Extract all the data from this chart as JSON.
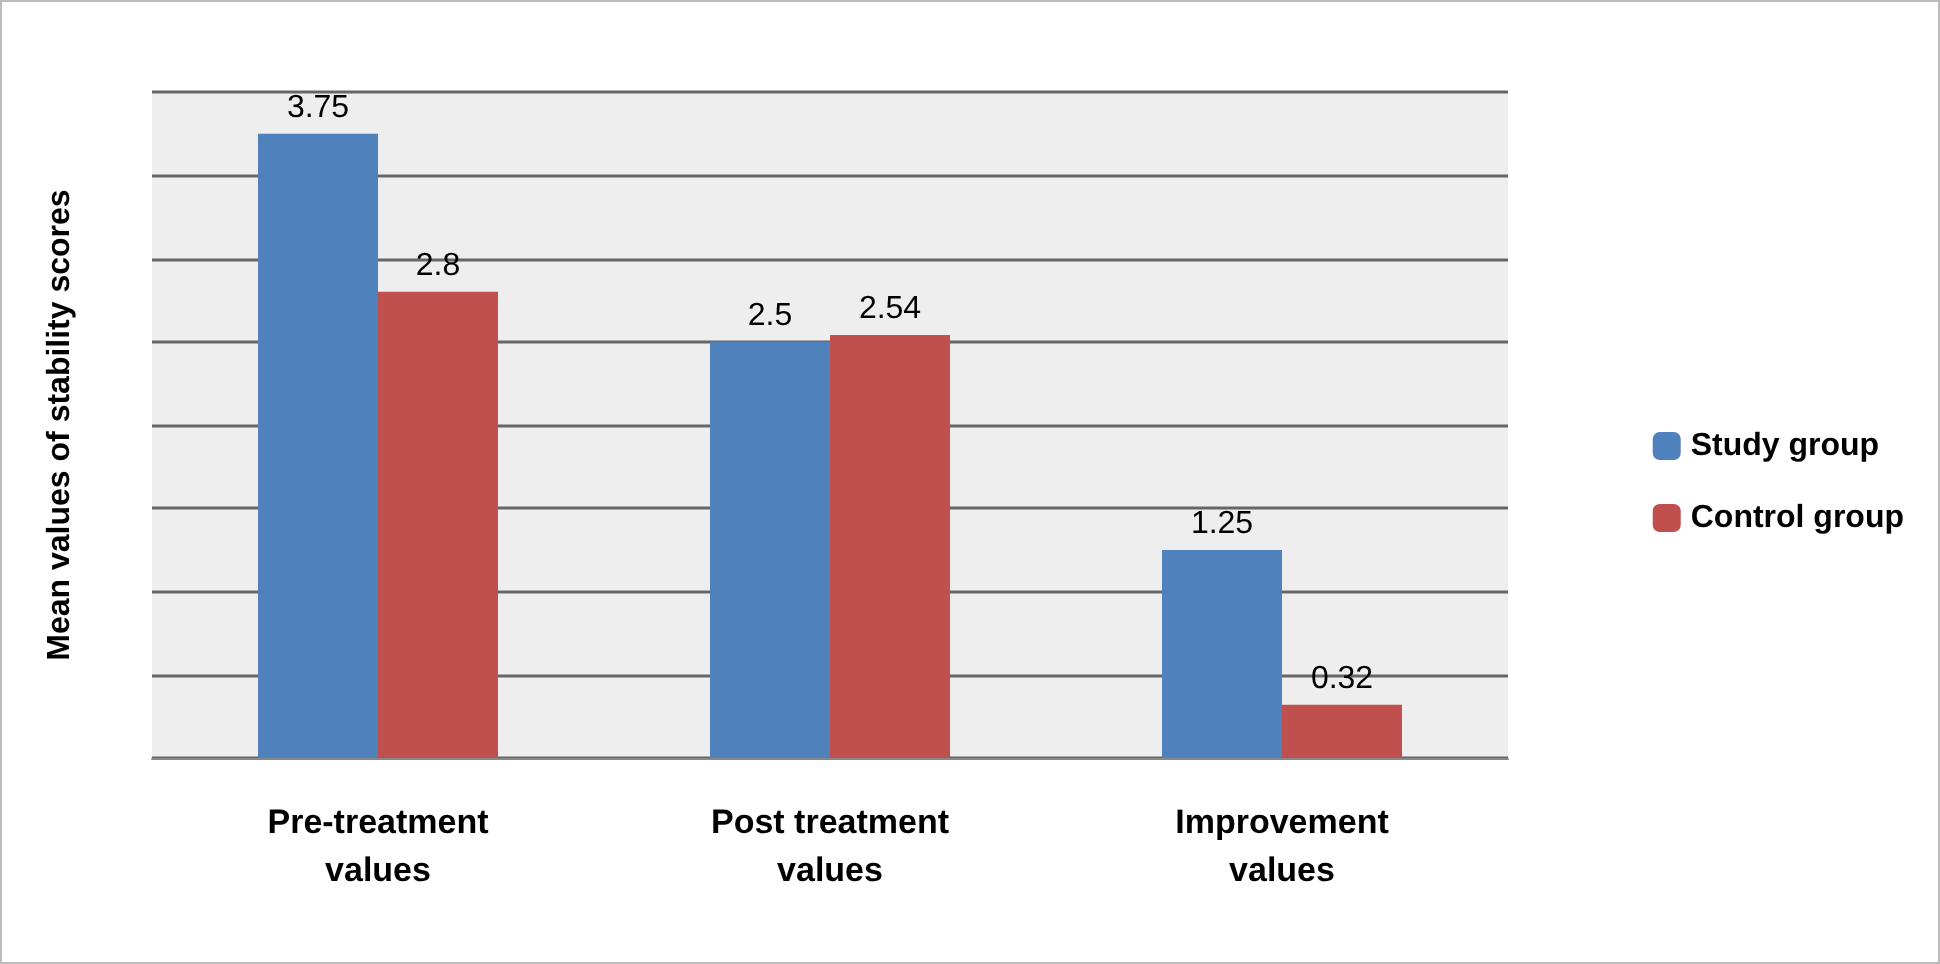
{
  "chart_data": {
    "type": "bar",
    "ylabel": "Mean values of stability scores",
    "categories": [
      "Pre-treatment values",
      "Post treatment values",
      "Improvement values"
    ],
    "series": [
      {
        "name": "Study group",
        "color": "#4f81bd",
        "values": [
          3.75,
          2.5,
          1.25
        ]
      },
      {
        "name": "Control group",
        "color": "#c0504d",
        "values": [
          2.8,
          2.54,
          0.32
        ]
      }
    ],
    "ylim": [
      0,
      4
    ],
    "yticks": [
      {
        "value": 0,
        "label": null
      },
      {
        "value": 0.5,
        "label": null
      },
      {
        "value": 1,
        "label": null
      },
      {
        "value": 1.5,
        "label": null
      },
      {
        "value": 2,
        "label": null
      },
      {
        "value": 2.5,
        "label": null
      },
      {
        "value": 3,
        "label": null
      },
      {
        "value": 3.5,
        "label": null
      },
      {
        "value": 4,
        "label": null
      }
    ],
    "grid": "y",
    "legend": "right",
    "data_labels": true,
    "tick_labels": "x"
  }
}
